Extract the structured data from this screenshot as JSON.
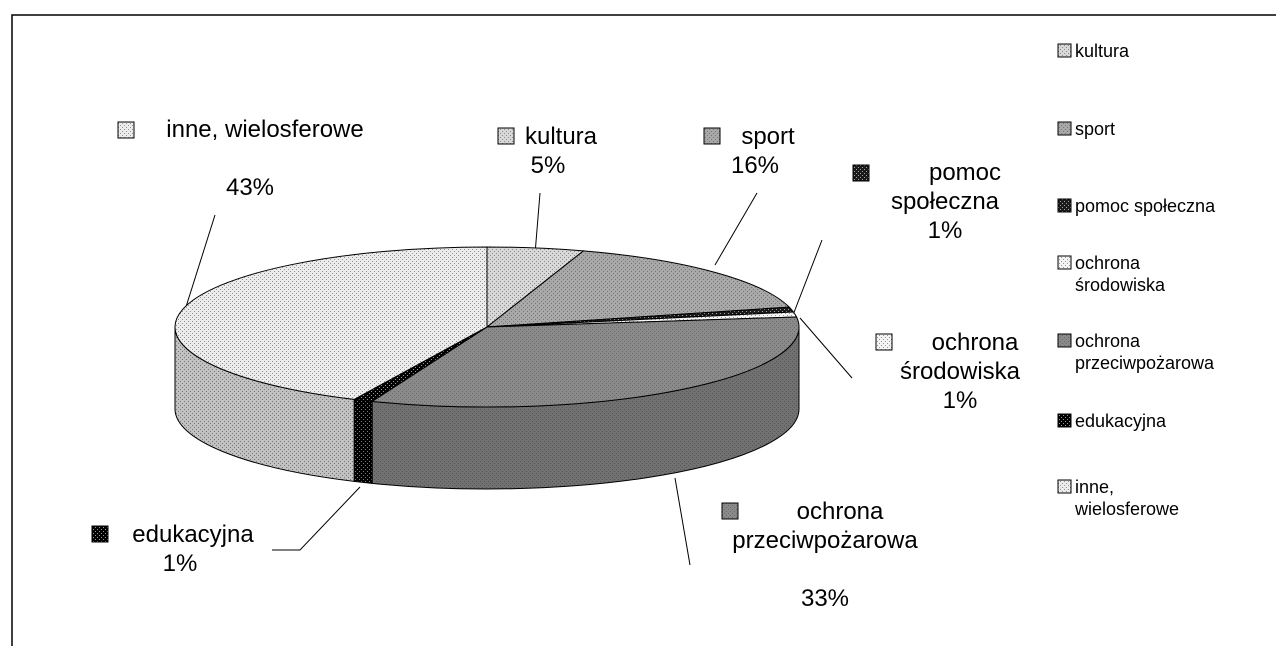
{
  "chart_data": {
    "type": "pie3d",
    "categories": [
      "kultura",
      "sport",
      "pomoc społeczna",
      "ochrona środowiska",
      "ochrona przeciwpożarowa",
      "edukacyjna",
      "inne, wielosferowe"
    ],
    "values": [
      5,
      16,
      1,
      1,
      33,
      1,
      43
    ],
    "value_labels": [
      "5%",
      "16%",
      "1%",
      "1%",
      "33%",
      "1%",
      "43%"
    ],
    "colors": [
      "#d8d8d8",
      "#a8a8a8",
      "#1a1a1a",
      "#f4f4f4",
      "#8a8a8a",
      "#000000",
      "#ececec"
    ],
    "legend": "right"
  }
}
